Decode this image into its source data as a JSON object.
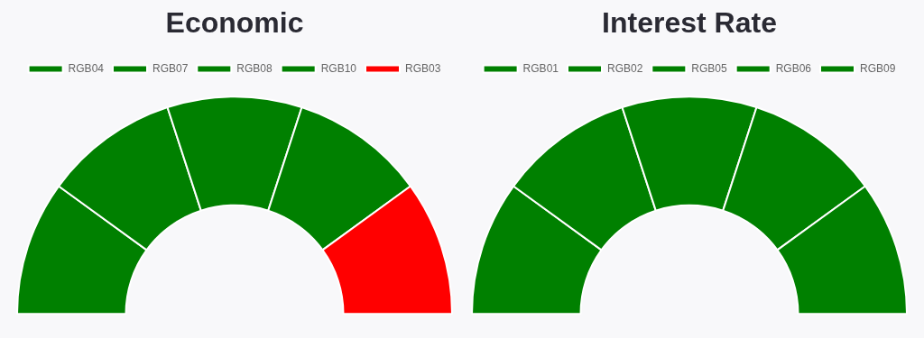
{
  "chart_data": [
    {
      "type": "donut",
      "title": "Economic",
      "categories": [
        "RGB04",
        "RGB07",
        "RGB08",
        "RGB10",
        "RGB03"
      ],
      "values": [
        20,
        20,
        20,
        20,
        20
      ],
      "colors": [
        "#008000",
        "#008000",
        "#008000",
        "#008000",
        "#ff0000"
      ],
      "legend": "top"
    },
    {
      "type": "donut",
      "title": "Interest Rate",
      "categories": [
        "RGB01",
        "RGB02",
        "RGB05",
        "RGB06",
        "RGB09"
      ],
      "values": [
        20,
        20,
        20,
        20,
        20
      ],
      "colors": [
        "#008000",
        "#008000",
        "#008000",
        "#008000",
        "#008000"
      ],
      "legend": "top"
    }
  ]
}
